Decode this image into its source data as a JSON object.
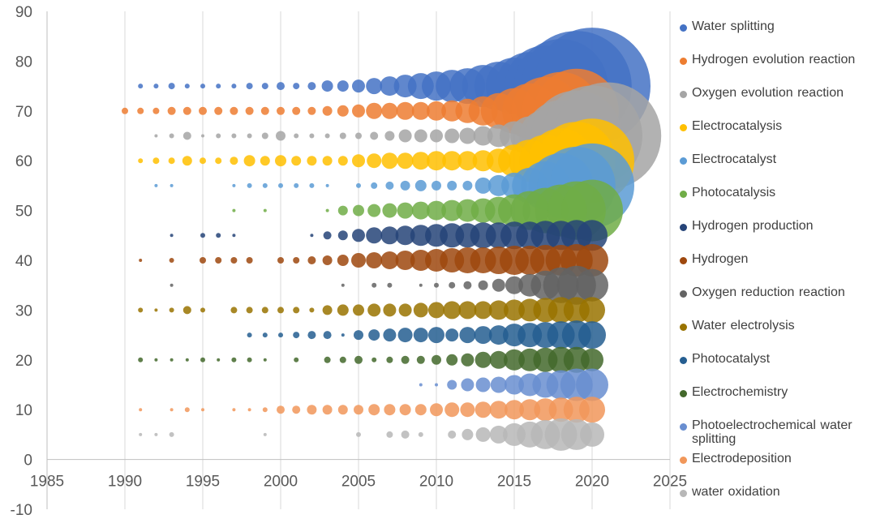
{
  "chart_data": {
    "type": "scatter",
    "subtype": "bubble",
    "xlim": [
      1985,
      2025
    ],
    "ylim": [
      -10,
      90
    ],
    "x_ticks": [
      1985,
      1990,
      1995,
      2000,
      2005,
      2010,
      2015,
      2020,
      2025
    ],
    "y_ticks": [
      -10,
      0,
      10,
      20,
      30,
      40,
      50,
      60,
      70,
      80,
      90
    ],
    "grid": "vertical",
    "legend_position": "right",
    "series": [
      {
        "name": "Water splitting",
        "y": 75,
        "color": "#4472C4",
        "x": [
          1991,
          1992,
          1993,
          1994,
          1995,
          1996,
          1997,
          1998,
          1999,
          2000,
          2001,
          2002,
          2003,
          2004,
          2005,
          2006,
          2007,
          2008,
          2009,
          2010,
          2011,
          2012,
          2013,
          2014,
          2015,
          2016,
          2017,
          2018,
          2019,
          2020
        ],
        "size": [
          3,
          3,
          4,
          3,
          3,
          3,
          3,
          4,
          4,
          5,
          4,
          5,
          7,
          7,
          8,
          10,
          12,
          14,
          16,
          18,
          20,
          22,
          26,
          30,
          35,
          42,
          50,
          58,
          68,
          72
        ]
      },
      {
        "name": "Hydrogen evolution reaction",
        "y": 70,
        "color": "#ED7D31",
        "x": [
          1990,
          1991,
          1992,
          1993,
          1994,
          1995,
          1996,
          1997,
          1998,
          1999,
          2000,
          2001,
          2002,
          2003,
          2004,
          2005,
          2006,
          2007,
          2008,
          2009,
          2010,
          2011,
          2012,
          2013,
          2014,
          2015,
          2016,
          2017,
          2018,
          2019
        ],
        "size": [
          4,
          4,
          4,
          5,
          5,
          5,
          5,
          5,
          5,
          5,
          5,
          5,
          5,
          6,
          7,
          8,
          10,
          10,
          11,
          11,
          12,
          13,
          15,
          18,
          22,
          28,
          34,
          42,
          48,
          52
        ]
      },
      {
        "name": "Oxygen evolution reaction",
        "y": 65,
        "color": "#A5A5A5",
        "x": [
          1992,
          1993,
          1994,
          1995,
          1996,
          1997,
          1998,
          1999,
          2000,
          2001,
          2002,
          2003,
          2004,
          2005,
          2006,
          2007,
          2008,
          2009,
          2010,
          2011,
          2012,
          2013,
          2014,
          2015,
          2016,
          2017,
          2018,
          2019,
          2020,
          2021
        ],
        "size": [
          2,
          3,
          5,
          2,
          3,
          3,
          3,
          4,
          6,
          3,
          3,
          3,
          4,
          4,
          5,
          6,
          8,
          8,
          8,
          9,
          10,
          12,
          14,
          18,
          24,
          32,
          44,
          56,
          62,
          66
        ]
      },
      {
        "name": "Electrocatalysis",
        "y": 60,
        "color": "#FFC000",
        "x": [
          1991,
          1992,
          1993,
          1994,
          1995,
          1996,
          1997,
          1998,
          1999,
          2000,
          2001,
          2002,
          2003,
          2004,
          2005,
          2006,
          2007,
          2008,
          2009,
          2010,
          2011,
          2012,
          2013,
          2014,
          2015,
          2016,
          2017,
          2018,
          2019,
          2020
        ],
        "size": [
          3,
          4,
          4,
          6,
          4,
          4,
          5,
          7,
          6,
          7,
          6,
          6,
          6,
          6,
          8,
          9,
          10,
          10,
          11,
          12,
          12,
          12,
          13,
          15,
          20,
          26,
          32,
          40,
          48,
          52
        ]
      },
      {
        "name": "Electrocatalyst",
        "y": 55,
        "color": "#5B9BD5",
        "x": [
          1992,
          1993,
          1997,
          1998,
          1999,
          2000,
          2001,
          2002,
          2003,
          2005,
          2006,
          2007,
          2008,
          2009,
          2010,
          2011,
          2012,
          2013,
          2014,
          2015,
          2016,
          2017,
          2018,
          2019,
          2020
        ],
        "size": [
          2,
          2,
          2,
          3,
          3,
          3,
          3,
          3,
          2,
          3,
          4,
          5,
          6,
          7,
          6,
          6,
          6,
          10,
          13,
          16,
          22,
          30,
          40,
          48,
          52
        ]
      },
      {
        "name": "Photocatalysis",
        "y": 50,
        "color": "#70AD47",
        "x": [
          1997,
          1999,
          2003,
          2004,
          2005,
          2006,
          2007,
          2008,
          2009,
          2010,
          2011,
          2012,
          2013,
          2014,
          2015,
          2016,
          2017,
          2018,
          2019,
          2020
        ],
        "size": [
          2,
          2,
          2,
          6,
          7,
          8,
          9,
          10,
          11,
          12,
          13,
          14,
          15,
          17,
          20,
          24,
          28,
          32,
          36,
          38
        ]
      },
      {
        "name": "Hydrogen production",
        "y": 45,
        "color": "#264478",
        "x": [
          1993,
          1995,
          1996,
          1997,
          2002,
          2003,
          2004,
          2005,
          2006,
          2007,
          2008,
          2009,
          2010,
          2011,
          2012,
          2013,
          2014,
          2015,
          2016,
          2017,
          2018,
          2019,
          2020
        ],
        "size": [
          2,
          3,
          3,
          2,
          2,
          5,
          6,
          8,
          10,
          11,
          12,
          13,
          14,
          15,
          15,
          16,
          16,
          17,
          17,
          18,
          18,
          19,
          19
        ]
      },
      {
        "name": "Hydrogen",
        "y": 40,
        "color": "#9E480E",
        "x": [
          1991,
          1993,
          1995,
          1996,
          1997,
          1998,
          2000,
          2001,
          2002,
          2003,
          2004,
          2005,
          2006,
          2007,
          2008,
          2009,
          2010,
          2011,
          2012,
          2013,
          2014,
          2015,
          2016,
          2017,
          2018,
          2019,
          2020
        ],
        "size": [
          2,
          3,
          4,
          4,
          4,
          4,
          4,
          4,
          5,
          6,
          7,
          9,
          10,
          11,
          12,
          13,
          14,
          15,
          16,
          16,
          17,
          18,
          18,
          19,
          19,
          20,
          20
        ]
      },
      {
        "name": "Oxygen reduction reaction",
        "y": 35,
        "color": "#636363",
        "x": [
          1993,
          2004,
          2006,
          2007,
          2009,
          2010,
          2011,
          2012,
          2013,
          2014,
          2015,
          2016,
          2017,
          2018,
          2019,
          2020
        ],
        "size": [
          2,
          2,
          3,
          3,
          2,
          3,
          4,
          5,
          6,
          8,
          11,
          14,
          18,
          22,
          24,
          20
        ]
      },
      {
        "name": "Water electrolysis",
        "y": 30,
        "color": "#997300",
        "x": [
          1991,
          1992,
          1993,
          1994,
          1995,
          1997,
          1998,
          1999,
          2000,
          2001,
          2002,
          2003,
          2004,
          2005,
          2006,
          2007,
          2008,
          2009,
          2010,
          2011,
          2012,
          2013,
          2014,
          2015,
          2016,
          2017,
          2018,
          2019,
          2020
        ],
        "size": [
          3,
          2,
          3,
          5,
          3,
          4,
          4,
          4,
          4,
          4,
          3,
          6,
          7,
          7,
          8,
          8,
          8,
          9,
          10,
          11,
          11,
          11,
          12,
          13,
          14,
          15,
          16,
          16,
          16
        ]
      },
      {
        "name": "Photocatalyst",
        "y": 25,
        "color": "#255E91",
        "x": [
          1998,
          1999,
          2000,
          2001,
          2002,
          2003,
          2004,
          2005,
          2006,
          2007,
          2008,
          2009,
          2010,
          2011,
          2012,
          2013,
          2014,
          2015,
          2016,
          2017,
          2018,
          2019,
          2020
        ],
        "size": [
          3,
          3,
          3,
          4,
          5,
          5,
          2,
          6,
          7,
          8,
          9,
          9,
          10,
          8,
          10,
          11,
          12,
          14,
          15,
          16,
          17,
          18,
          17
        ]
      },
      {
        "name": "Electrochemistry",
        "y": 20,
        "color": "#43682B",
        "x": [
          1991,
          1992,
          1993,
          1994,
          1995,
          1996,
          1997,
          1998,
          1999,
          2001,
          2003,
          2004,
          2005,
          2006,
          2007,
          2008,
          2009,
          2010,
          2011,
          2012,
          2013,
          2014,
          2015,
          2016,
          2017,
          2018,
          2019,
          2020
        ],
        "size": [
          3,
          2,
          2,
          2,
          3,
          2,
          3,
          3,
          2,
          3,
          4,
          4,
          5,
          3,
          4,
          5,
          5,
          6,
          7,
          8,
          10,
          11,
          13,
          14,
          15,
          16,
          16,
          14
        ]
      },
      {
        "name": "Photoelectrochemical water splitting",
        "y": 15,
        "color": "#698ED0",
        "x": [
          2009,
          2010,
          2011,
          2012,
          2013,
          2014,
          2015,
          2016,
          2017,
          2018,
          2019,
          2020
        ],
        "size": [
          2,
          2,
          6,
          8,
          9,
          10,
          12,
          14,
          16,
          18,
          20,
          20
        ]
      },
      {
        "name": "Electrodeposition",
        "y": 10,
        "color": "#F1975A",
        "x": [
          1991,
          1993,
          1994,
          1995,
          1997,
          1998,
          1999,
          2000,
          2001,
          2002,
          2003,
          2004,
          2005,
          2006,
          2007,
          2008,
          2009,
          2010,
          2011,
          2012,
          2013,
          2014,
          2015,
          2016,
          2017,
          2018,
          2019,
          2020
        ],
        "size": [
          2,
          2,
          3,
          2,
          2,
          2,
          3,
          5,
          5,
          6,
          6,
          6,
          6,
          7,
          7,
          7,
          7,
          8,
          9,
          9,
          10,
          11,
          12,
          13,
          14,
          15,
          16,
          16
        ]
      },
      {
        "name": "water oxidation",
        "y": 5,
        "color": "#B7B7B7",
        "x": [
          1991,
          1992,
          1993,
          1999,
          2005,
          2007,
          2008,
          2009,
          2011,
          2012,
          2013,
          2014,
          2015,
          2016,
          2017,
          2018,
          2019,
          2020
        ],
        "size": [
          2,
          2,
          3,
          2,
          3,
          4,
          5,
          3,
          5,
          7,
          9,
          11,
          14,
          16,
          18,
          20,
          19,
          15
        ]
      }
    ]
  }
}
